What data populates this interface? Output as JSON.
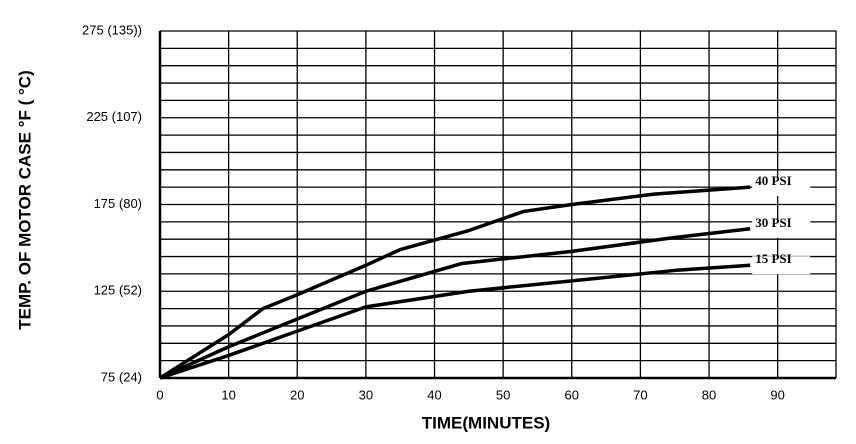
{
  "chart_data": {
    "type": "line",
    "x_label": "TIME(MINUTES)",
    "y_label": "TEMP. OF MOTOR CASE     °F  ( °C)",
    "xlim": [
      0,
      98.5
    ],
    "xticks": [
      0,
      10,
      20,
      30,
      40,
      50,
      60,
      70,
      80,
      90
    ],
    "ylim": [
      75,
      275
    ],
    "yticks": [
      {
        "value": 75,
        "label": "75  (24)"
      },
      {
        "value": 125,
        "label": "125  (52)"
      },
      {
        "value": 175,
        "label": "175  (80)"
      },
      {
        "value": 225,
        "label": "225 (107)"
      },
      {
        "value": 275,
        "label": "275 (135))"
      }
    ],
    "yminorticks": [
      85,
      95,
      105,
      115,
      135,
      145,
      155,
      165,
      185,
      195,
      205,
      215,
      235,
      245,
      255,
      265
    ],
    "grid": true,
    "series": [
      {
        "name": "40  PSI",
        "color": "#000000",
        "x": [
          0,
          10,
          15,
          20,
          30,
          35,
          45,
          53,
          60,
          72,
          86
        ],
        "values": [
          75,
          100,
          115,
          123,
          140,
          149,
          160,
          171,
          175,
          181,
          185
        ]
      },
      {
        "name": "30  PSI",
        "color": "#000000",
        "x": [
          0,
          10,
          20,
          30,
          44,
          60,
          75,
          86
        ],
        "values": [
          75,
          93,
          109,
          125,
          141,
          148,
          156,
          161
        ]
      },
      {
        "name": "15  PSI",
        "color": "#000000",
        "x": [
          0,
          10,
          20,
          30,
          45,
          60,
          75,
          86
        ],
        "values": [
          75,
          88,
          102,
          116,
          125,
          131,
          137,
          140
        ]
      }
    ]
  }
}
